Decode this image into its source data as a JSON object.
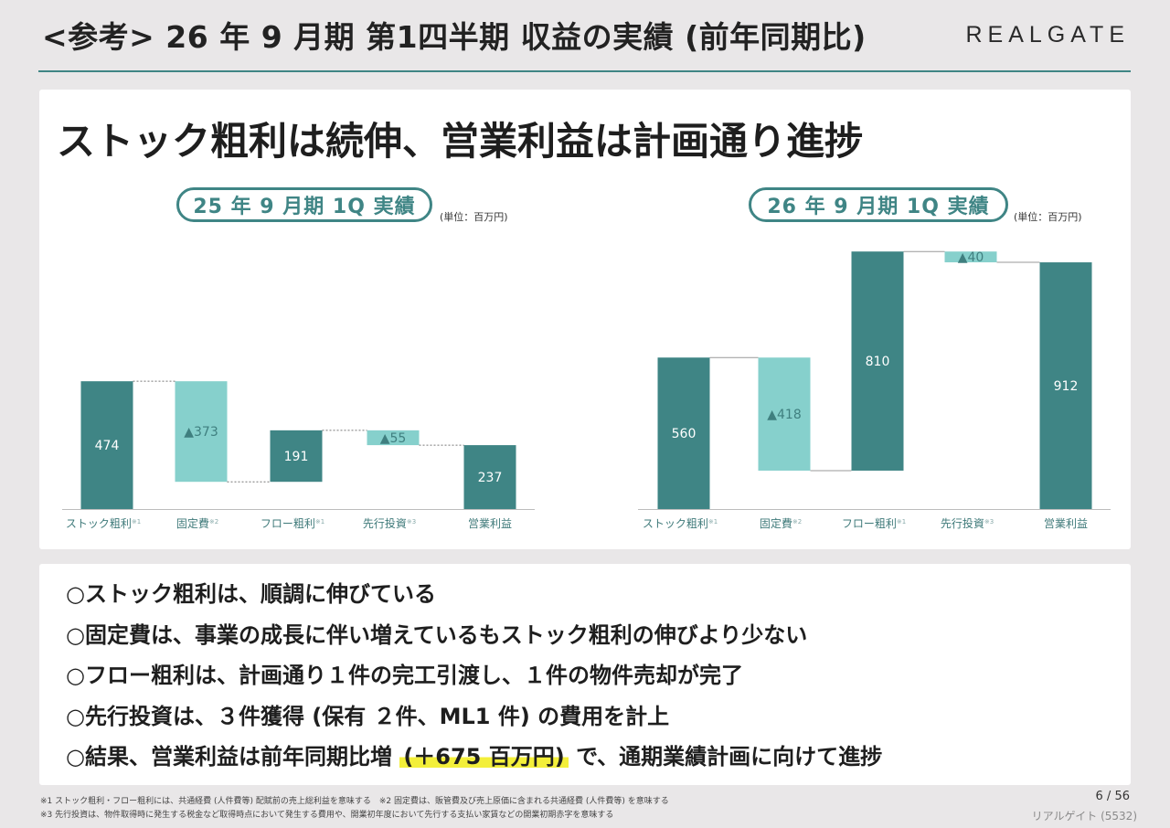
{
  "header": {
    "title": "<参考> 26 年 9 月期 第1四半期 収益の実績 (前年同期比)",
    "brand": "REALGATE"
  },
  "headline": "ストック粗利は続伸、営業利益は計画通り進捗",
  "colors": {
    "teal_dark": "#3f8585",
    "teal_light": "#86d0cc",
    "highlight": "#f3ef3a"
  },
  "chart_data": [
    {
      "type": "bar",
      "subtype": "waterfall",
      "title": "25 年 9 月期 1Q 実績",
      "unit": "(単位：百万円)",
      "categories": [
        "ストック粗利",
        "固定費",
        "フロー粗利",
        "先行投資",
        "営業利益"
      ],
      "category_notes": [
        "※1",
        "※2",
        "※1",
        "※3",
        ""
      ],
      "values": [
        474,
        -373,
        191,
        -55,
        237
      ],
      "value_labels": [
        "474",
        "▲373",
        "191",
        "▲55",
        "237"
      ],
      "kinds": [
        "increase",
        "decrease",
        "increase",
        "decrease",
        "total"
      ]
    },
    {
      "type": "bar",
      "subtype": "waterfall",
      "title": "26 年 9 月期 1Q 実績",
      "unit": "(単位：百万円)",
      "categories": [
        "ストック粗利",
        "固定費",
        "フロー粗利",
        "先行投資",
        "営業利益"
      ],
      "category_notes": [
        "※1",
        "※2",
        "※1",
        "※3",
        ""
      ],
      "values": [
        560,
        -418,
        810,
        -40,
        912
      ],
      "value_labels": [
        "560",
        "▲418",
        "810",
        "▲40",
        "912"
      ],
      "kinds": [
        "increase",
        "decrease",
        "increase",
        "decrease",
        "total"
      ]
    }
  ],
  "bullets": [
    {
      "pre": "○ストック粗利は、順調に伸びている",
      "hl": "",
      "post": ""
    },
    {
      "pre": "○固定費は、事業の成長に伴い増えているもストック粗利の伸びより少ない",
      "hl": "",
      "post": ""
    },
    {
      "pre": "○フロー粗利は、計画通り１件の完工引渡し、１件の物件売却が完了",
      "hl": "",
      "post": ""
    },
    {
      "pre": "○先行投資は、３件獲得 (保有 ２件、ML1 件) の費用を計上",
      "hl": "",
      "post": ""
    },
    {
      "pre": "○結果、営業利益は前年同期比増",
      "hl": "(＋675 百万円)",
      "post": "で、通期業績計画に向けて進捗"
    }
  ],
  "footnotes": {
    "line1": "※1 ストック粗利・フロー粗利には、共通経費 (人件費等) 配賦前の売上総利益を意味する　※2 固定費は、販管費及び売上原価に含まれる共通経費 (人件費等) を意味する",
    "line2": "※3 先行投資は、物件取得時に発生する税金など取得時点において発生する費用や、開業初年度において先行する支払い家賃などの開業初期赤字を意味する"
  },
  "page": {
    "current": "6",
    "separator": "/",
    "total": "56"
  },
  "company": "リアルゲイト (5532)"
}
